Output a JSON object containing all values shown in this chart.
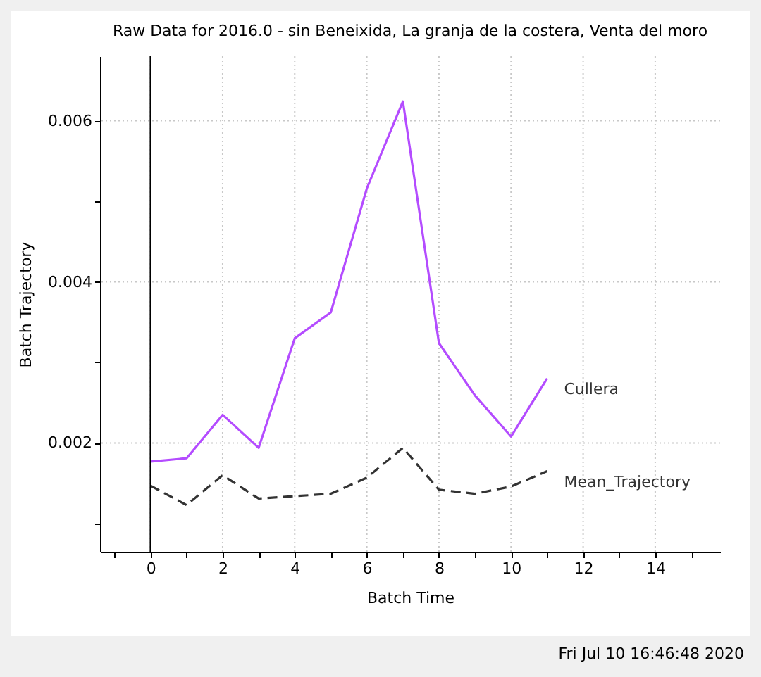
{
  "chart_data": {
    "type": "line",
    "title": "Raw Data for 2016.0 - sin Beneixida, La granja de la costera, Venta del moro",
    "xlabel": "Batch Time",
    "ylabel": "Batch Trajectory",
    "x": [
      0,
      1,
      2,
      3,
      4,
      5,
      6,
      7,
      8,
      9,
      10,
      11
    ],
    "series": [
      {
        "name": "Cullera",
        "color": "#b44cff",
        "line_style": "solid",
        "values": [
          0.00177,
          0.00181,
          0.00235,
          0.00194,
          0.0033,
          0.00362,
          0.00516,
          0.00624,
          0.00324,
          0.00259,
          0.00208,
          0.0028
        ]
      },
      {
        "name": "Mean_Trajectory",
        "color": "#333333",
        "line_style": "dashed",
        "values": [
          0.00147,
          0.00123,
          0.0016,
          0.00131,
          0.00134,
          0.00137,
          0.00157,
          0.00194,
          0.00142,
          0.00137,
          0.00146,
          0.00165
        ]
      }
    ],
    "xlim": [
      -1.4,
      15.8
    ],
    "ylim": [
      0.00065,
      0.0068
    ],
    "xticks": [
      {
        "value": -1,
        "label": null
      },
      0,
      {
        "value": 1,
        "label": null
      },
      2,
      {
        "value": 3,
        "label": null
      },
      4,
      {
        "value": 5,
        "label": null
      },
      6,
      {
        "value": 7,
        "label": null
      },
      8,
      {
        "value": 9,
        "label": null
      },
      10,
      {
        "value": 11,
        "label": null
      },
      12,
      {
        "value": 13,
        "label": null
      },
      14,
      {
        "value": 15,
        "label": null
      }
    ],
    "yticks": [
      {
        "value": 0.001,
        "label": null
      },
      0.002,
      {
        "value": 0.003,
        "label": null
      },
      0.004,
      {
        "value": 0.005,
        "label": null
      },
      0.006
    ],
    "ref_lines": [
      {
        "axis": "x",
        "value": 0,
        "color": "#000000"
      }
    ],
    "grid": true,
    "legend": false,
    "marker": "none",
    "annotations": [
      "Fri Jul 10 16:46:48 2020"
    ]
  }
}
